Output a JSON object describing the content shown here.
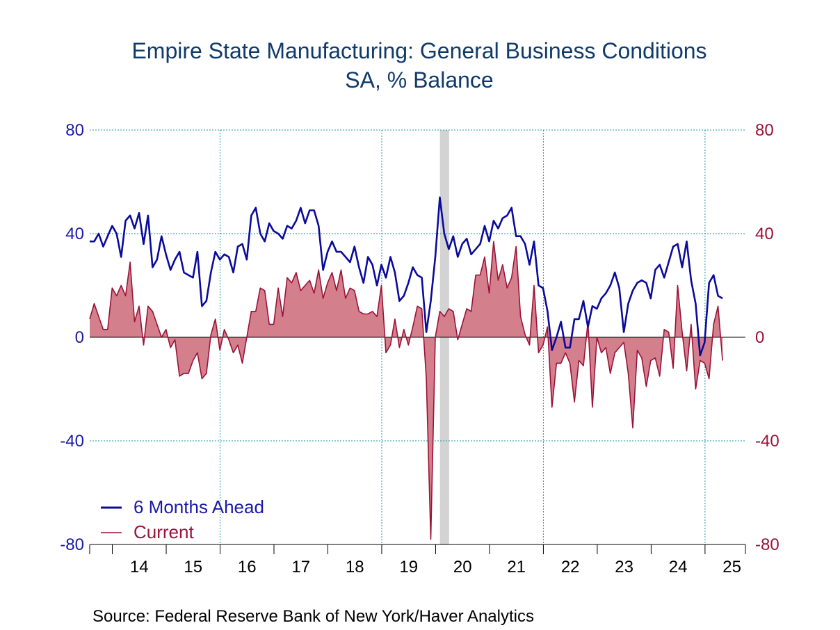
{
  "chart_data": {
    "type": "line",
    "title": "Empire State Manufacturing: General Business Conditions",
    "subtitle": "SA, % Balance",
    "source": "Source:  Federal Reserve Bank of New York/Haver Analytics",
    "y_left": {
      "ticks": [
        "80",
        "40",
        "0",
        "-40",
        "-80"
      ],
      "values": [
        80,
        40,
        0,
        -40,
        -80
      ]
    },
    "y_right": {
      "ticks": [
        "80",
        "40",
        "0",
        "-40",
        "-80"
      ],
      "values": [
        80,
        40,
        0,
        -40,
        -80
      ]
    },
    "ylim": [
      -80,
      80
    ],
    "xlim": [
      2013.58,
      2025.75
    ],
    "x_tick_labels": [
      "14",
      "15",
      "16",
      "17",
      "18",
      "19",
      "20",
      "21",
      "22",
      "23",
      "24",
      "25"
    ],
    "x_tick_centers": [
      2014.5,
      2015.5,
      2016.5,
      2017.5,
      2018.5,
      2019.5,
      2020.5,
      2021.5,
      2022.5,
      2023.5,
      2024.5,
      2025.5
    ],
    "x_minor_ticks": [
      2014,
      2015,
      2016,
      2017,
      2018,
      2019,
      2020,
      2021,
      2022,
      2023,
      2024,
      2025
    ],
    "x_major_grid": [
      2016,
      2019,
      2022,
      2025
    ],
    "recession": [
      2020.08,
      2020.25
    ],
    "colors": {
      "six_months": "#0a0a9c",
      "current": "#9b1238",
      "current_fill": "#d47f8c",
      "grid": "#1b9aa6",
      "recession": "#d3d3d3",
      "left_axis": "#1a1aa8",
      "right_axis": "#9b1238"
    },
    "legend": [
      {
        "name": "6 Months Ahead",
        "color": "#0a0a9c"
      },
      {
        "name": "Current",
        "color": "#9b1238"
      }
    ],
    "series": [
      {
        "name": "6 Months Ahead",
        "start": 2013.58,
        "step": 0.0833,
        "values": [
          37,
          37,
          40,
          35,
          39,
          43,
          40,
          31,
          45,
          47,
          42,
          48,
          36,
          47,
          27,
          30,
          39,
          32,
          26,
          30,
          33,
          25,
          24,
          23,
          33,
          12,
          14,
          25,
          33,
          30,
          32,
          31,
          25,
          35,
          36,
          30,
          47,
          50,
          40,
          37,
          44,
          41,
          40,
          38,
          43,
          42,
          45,
          50,
          44,
          49,
          49,
          43,
          26,
          33,
          37,
          33,
          33,
          31,
          29,
          35,
          27,
          21,
          31,
          28,
          20,
          28,
          23,
          31,
          25,
          14,
          16,
          21,
          27,
          24,
          23,
          2,
          14,
          31,
          54,
          40,
          34,
          39,
          31,
          36,
          38,
          32,
          34,
          36,
          43,
          37,
          45,
          42,
          46,
          47,
          50,
          39,
          39,
          36,
          28,
          37,
          20,
          19,
          10,
          -5,
          0,
          6,
          -4,
          -4,
          7,
          7,
          14,
          4,
          12,
          11,
          15,
          17,
          20,
          25,
          19,
          2,
          13,
          18,
          21,
          22,
          21,
          15,
          26,
          28,
          23,
          29,
          35,
          36,
          27,
          37,
          22,
          13,
          -7,
          -2,
          21,
          24,
          16,
          15
        ]
      },
      {
        "name": "Current",
        "start": 2013.58,
        "step": 0.0833,
        "values": [
          7,
          13,
          8,
          3,
          3,
          19,
          16,
          20,
          16,
          29,
          6,
          12,
          -3,
          12,
          10,
          5,
          0,
          3,
          -4,
          -1,
          -15,
          -14,
          -14,
          -9,
          -6,
          -16,
          -14,
          1,
          7,
          -5,
          3,
          -1,
          -6,
          -3,
          -10,
          0,
          10,
          10,
          19,
          18,
          5,
          5,
          19,
          8,
          23,
          21,
          25,
          18,
          20,
          22,
          17,
          26,
          15,
          21,
          25,
          18,
          26,
          15,
          19,
          18,
          10,
          9,
          9,
          10,
          8,
          20,
          -6,
          -3,
          7,
          -4,
          3,
          -3,
          4,
          12,
          11,
          -16,
          -78,
          0,
          10,
          8,
          11,
          10,
          -1,
          5,
          11,
          10,
          24,
          24,
          31,
          17,
          37,
          22,
          28,
          19,
          23,
          35,
          8,
          1,
          -3,
          20,
          -6,
          -3,
          4,
          -27,
          -10,
          -10,
          -6,
          -10,
          -25,
          -9,
          -11,
          6,
          -27,
          0,
          -6,
          -4,
          -14,
          -6,
          -4,
          -2,
          -14,
          -35,
          -5,
          -8,
          -19,
          -9,
          -8,
          -15,
          3,
          2,
          -12,
          20,
          2,
          -13,
          5,
          -20,
          -9,
          -10,
          -16,
          5,
          12,
          -9
        ]
      }
    ]
  }
}
